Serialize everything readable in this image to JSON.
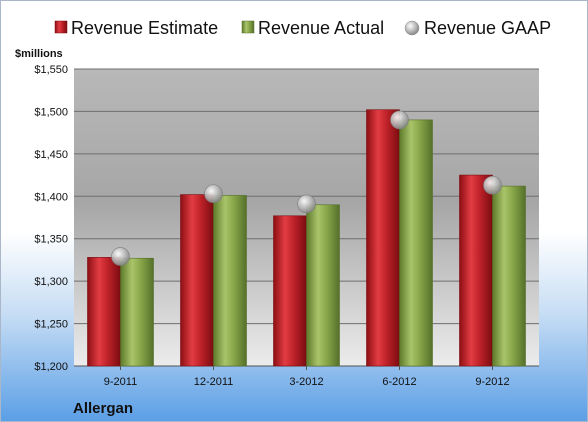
{
  "chart_data": {
    "type": "bar",
    "unit_label": "$millions",
    "company": "Allergan",
    "categories": [
      "9-2011",
      "12-2011",
      "3-2012",
      "6-2012",
      "9-2012"
    ],
    "ylim": [
      1200,
      1550
    ],
    "yticks": [
      1200,
      1250,
      1300,
      1350,
      1400,
      1450,
      1500,
      1550
    ],
    "ytick_labels": [
      "$1,200",
      "$1,250",
      "$1,300",
      "$1,350",
      "$1,400",
      "$1,450",
      "$1,500",
      "$1,550"
    ],
    "grid": true,
    "legend_position": "top",
    "series": [
      {
        "name": "Revenue Estimate",
        "type": "bar",
        "color": "#c0232a",
        "values": [
          1328,
          1402,
          1377,
          1502,
          1425
        ]
      },
      {
        "name": "Revenue Actual",
        "type": "bar",
        "color": "#8aa84a",
        "values": [
          1327,
          1401,
          1390,
          1490,
          1412
        ]
      },
      {
        "name": "Revenue GAAP",
        "type": "marker",
        "color": "#a8a8a8",
        "values": [
          1329,
          1403,
          1391,
          1490,
          1413
        ]
      }
    ]
  }
}
